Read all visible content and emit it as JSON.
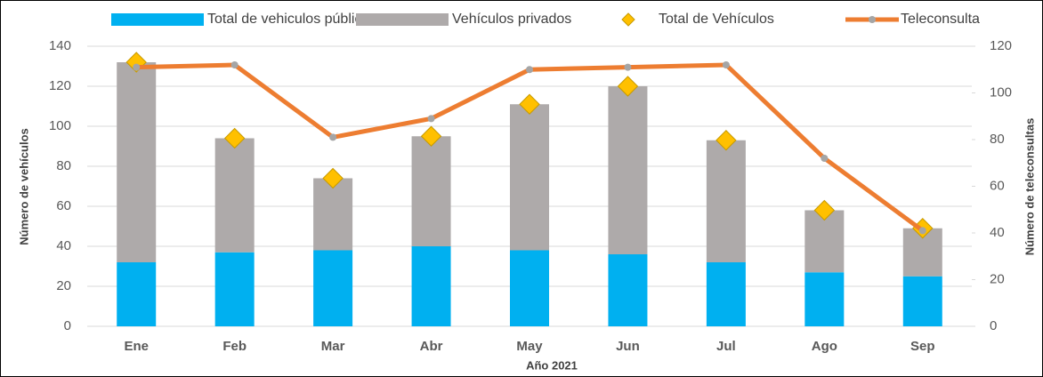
{
  "chart_data": {
    "type": "bar",
    "stacked": true,
    "xlabel": "Año 2021",
    "ylabel": "Número de vehículos",
    "y2label": "Número de teleconsultas",
    "categories": [
      "Ene",
      "Feb",
      "Mar",
      "Abr",
      "May",
      "Jun",
      "Jul",
      "Ago",
      "Sep"
    ],
    "series": [
      {
        "name": "Total de vehiculos públicos",
        "type": "bar",
        "color": "#00b0f0",
        "values": [
          32,
          37,
          38,
          40,
          38,
          36,
          32,
          27,
          25
        ]
      },
      {
        "name": "Vehículos privados",
        "type": "bar",
        "color": "#aeaaaa",
        "values": [
          100,
          57,
          36,
          55,
          73,
          84,
          61,
          31,
          24
        ]
      },
      {
        "name": "Total de Vehículos",
        "type": "marker",
        "color": "#ffc000",
        "values": [
          132,
          94,
          74,
          95,
          111,
          120,
          93,
          58,
          49
        ]
      },
      {
        "name": "Teleconsulta",
        "type": "line",
        "axis": "y2",
        "color": "#ed7d31",
        "marker_color": "#a5a5a5",
        "values": [
          111,
          112,
          81,
          89,
          110,
          111,
          112,
          72,
          41
        ]
      }
    ],
    "ylim": [
      0,
      140
    ],
    "yticks": [
      0,
      20,
      40,
      60,
      80,
      100,
      120,
      140
    ],
    "y2lim": [
      0,
      120
    ],
    "y2ticks": [
      0,
      20,
      40,
      60,
      80,
      100,
      120
    ],
    "legend": "top"
  }
}
